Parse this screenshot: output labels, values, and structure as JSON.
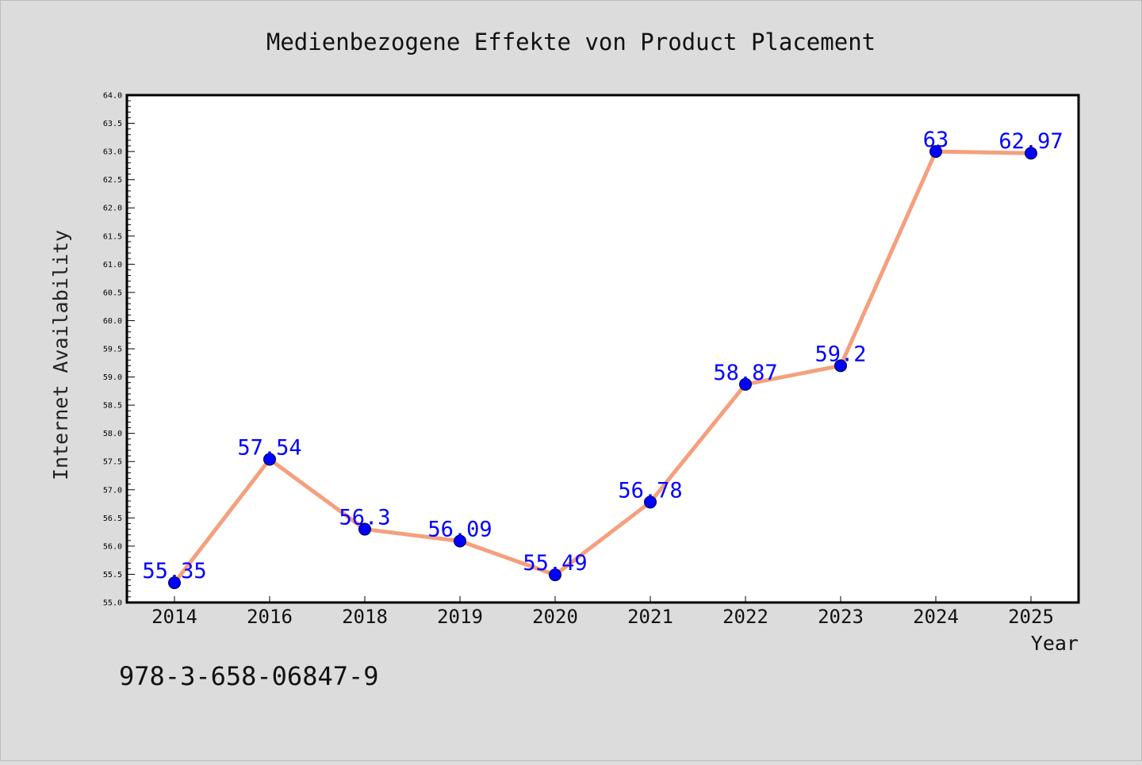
{
  "chart_data": {
    "type": "line",
    "title": "Medienbezogene Effekte von Product Placement",
    "xlabel": "Year",
    "ylabel": "Internet Availability",
    "categories": [
      "2014",
      "2016",
      "2018",
      "2019",
      "2020",
      "2021",
      "2022",
      "2023",
      "2024",
      "2025"
    ],
    "values": [
      55.35,
      57.54,
      56.3,
      56.09,
      55.49,
      56.78,
      58.87,
      59.2,
      63,
      62.97
    ],
    "data_labels": [
      "55.35",
      "57.54",
      "56.3",
      "56.09",
      "55.49",
      "56.78",
      "58.87",
      "59.2",
      "63",
      "62.97"
    ],
    "ylim": [
      55.0,
      64.0
    ],
    "y_ticks": [
      "55.0",
      "55.5",
      "56.0",
      "56.5",
      "57.0",
      "57.5",
      "58.0",
      "58.5",
      "59.0",
      "59.5",
      "60.0",
      "60.5",
      "61.0",
      "61.5",
      "62.0",
      "62.5",
      "63.0",
      "63.5",
      "64.0"
    ],
    "grid": false,
    "legend": "none",
    "colors": {
      "line": "#f4a07e",
      "marker": "#0000ff",
      "data_label": "#0000ff",
      "background": "#dcdcdc",
      "plot_background": "#ffffff"
    }
  },
  "footer": {
    "isbn": "978-3-658-06847-9"
  }
}
